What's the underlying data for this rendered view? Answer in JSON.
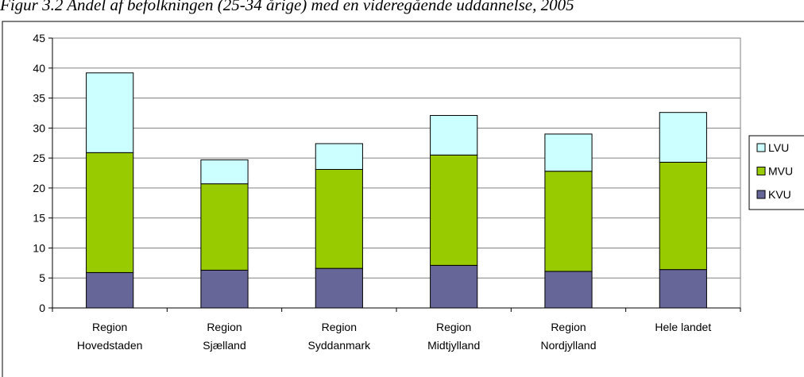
{
  "caption": "Figur 3.2 Andel af befolkningen (25-34 årige) med en videregående uddannelse, 2005",
  "chart_data": {
    "type": "bar",
    "stacked": true,
    "categories": [
      [
        "Region",
        "Hovedstaden"
      ],
      [
        "Region",
        "Sjælland"
      ],
      [
        "Region",
        "Syddanmark"
      ],
      [
        "Region",
        "Midtjylland"
      ],
      [
        "Region",
        "Nordjylland"
      ],
      [
        "Hele landet"
      ]
    ],
    "series": [
      {
        "name": "KVU",
        "color": "#666699",
        "values": [
          5.9,
          6.3,
          6.6,
          7.1,
          6.1,
          6.4
        ]
      },
      {
        "name": "MVU",
        "color": "#99cc00",
        "values": [
          20.0,
          14.4,
          16.5,
          18.4,
          16.7,
          17.9
        ]
      },
      {
        "name": "LVU",
        "color": "#ccffff",
        "values": [
          13.3,
          4.0,
          4.3,
          6.6,
          6.2,
          8.3
        ]
      }
    ],
    "ylim": [
      0,
      45
    ],
    "yticks": [
      0,
      5,
      10,
      15,
      20,
      25,
      30,
      35,
      40,
      45
    ],
    "grid": true,
    "legend_position": "right",
    "legend_order": [
      "LVU",
      "MVU",
      "KVU"
    ]
  }
}
